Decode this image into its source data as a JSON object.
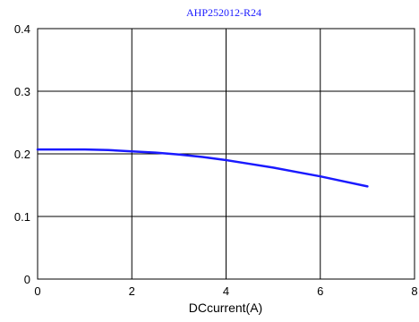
{
  "chart_data": {
    "type": "line",
    "title": "AHP252012-R24",
    "xlabel": "DCcurrent(A)",
    "ylabel": "",
    "xlim": [
      0,
      8
    ],
    "ylim": [
      0,
      0.4
    ],
    "x_ticks": [
      "0",
      "2",
      "4",
      "6",
      "8"
    ],
    "y_ticks": [
      "0",
      "0.1",
      "0.2",
      "0.3",
      "0.4"
    ],
    "grid": true,
    "series": [
      {
        "x": [
          0,
          0.5,
          1,
          1.5,
          2,
          2.5,
          3,
          3.5,
          4,
          4.5,
          5,
          5.5,
          6,
          6.5,
          7
        ],
        "y": [
          0.207,
          0.207,
          0.207,
          0.206,
          0.204,
          0.202,
          0.199,
          0.195,
          0.19,
          0.184,
          0.178,
          0.171,
          0.164,
          0.156,
          0.148
        ]
      }
    ],
    "colors": {
      "series": "#1a1aff",
      "grid": "#000000",
      "title": "#1a1aff"
    }
  }
}
